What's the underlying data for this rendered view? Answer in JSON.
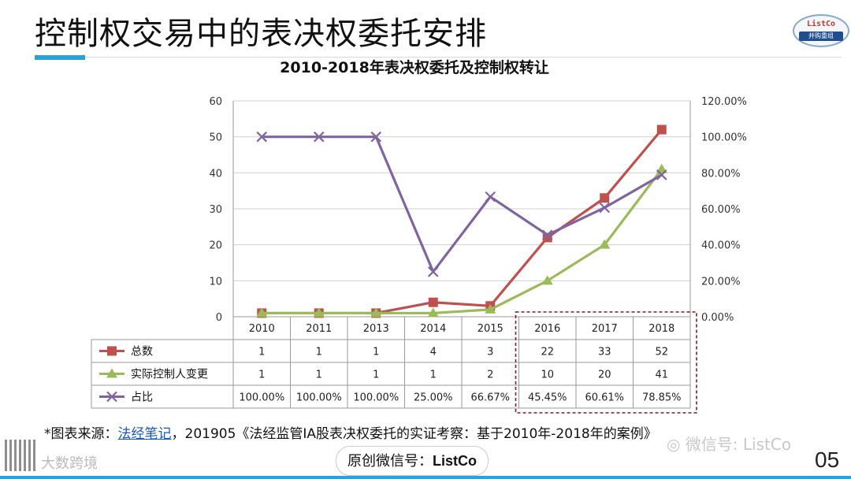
{
  "page": {
    "title": "控制权交易中的表决权委托安排",
    "logo_top": "ListCo",
    "logo_bottom": "并购重组",
    "source_prefix": "*图表来源：",
    "source_link": "法经笔记",
    "source_suffix": "，201905《法经监管IA股表决权委托的实证考察：基于2010年-2018年的案例》",
    "watermark_left": "大数跨境",
    "watermark_right": "微信号: ListCo",
    "badge_prefix": "原创微信号：",
    "badge_name": "ListCo",
    "page_number": "05"
  },
  "chart_data": {
    "type": "line",
    "title": "2010-2018年表决权委托及控制权转让",
    "categories": [
      "2010",
      "2011",
      "2013",
      "2014",
      "2015",
      "2016",
      "2017",
      "2018"
    ],
    "y_left": {
      "min": 0,
      "max": 60,
      "ticks": [
        0,
        10,
        20,
        30,
        40,
        50,
        60
      ]
    },
    "y_right": {
      "min": 0,
      "max": 1.2,
      "ticks": [
        "0.00%",
        "20.00%",
        "40.00%",
        "60.00%",
        "80.00%",
        "100.00%",
        "120.00%"
      ]
    },
    "grid": "horizontal",
    "legend": "data-table-left",
    "highlight": {
      "categories": [
        "2016",
        "2017",
        "2018"
      ],
      "style": "dashed-box"
    },
    "series": [
      {
        "name": "总数",
        "axis": "left",
        "marker": "square",
        "color": "#c0504d",
        "values": [
          1,
          1,
          1,
          4,
          3,
          22,
          33,
          52
        ],
        "labels": [
          "1",
          "1",
          "1",
          "4",
          "3",
          "22",
          "33",
          "52"
        ]
      },
      {
        "name": "实际控制人变更",
        "axis": "left",
        "marker": "triangle",
        "color": "#9bbb59",
        "values": [
          1,
          1,
          1,
          1,
          2,
          10,
          20,
          41
        ],
        "labels": [
          "1",
          "1",
          "1",
          "1",
          "2",
          "10",
          "20",
          "41"
        ]
      },
      {
        "name": "占比",
        "axis": "right",
        "marker": "x",
        "color": "#8064a2",
        "values": [
          1.0,
          1.0,
          1.0,
          0.25,
          0.6667,
          0.4545,
          0.6061,
          0.7885
        ],
        "labels": [
          "100.00%",
          "100.00%",
          "100.00%",
          "25.00%",
          "66.67%",
          "45.45%",
          "60.61%",
          "78.85%"
        ]
      }
    ]
  }
}
